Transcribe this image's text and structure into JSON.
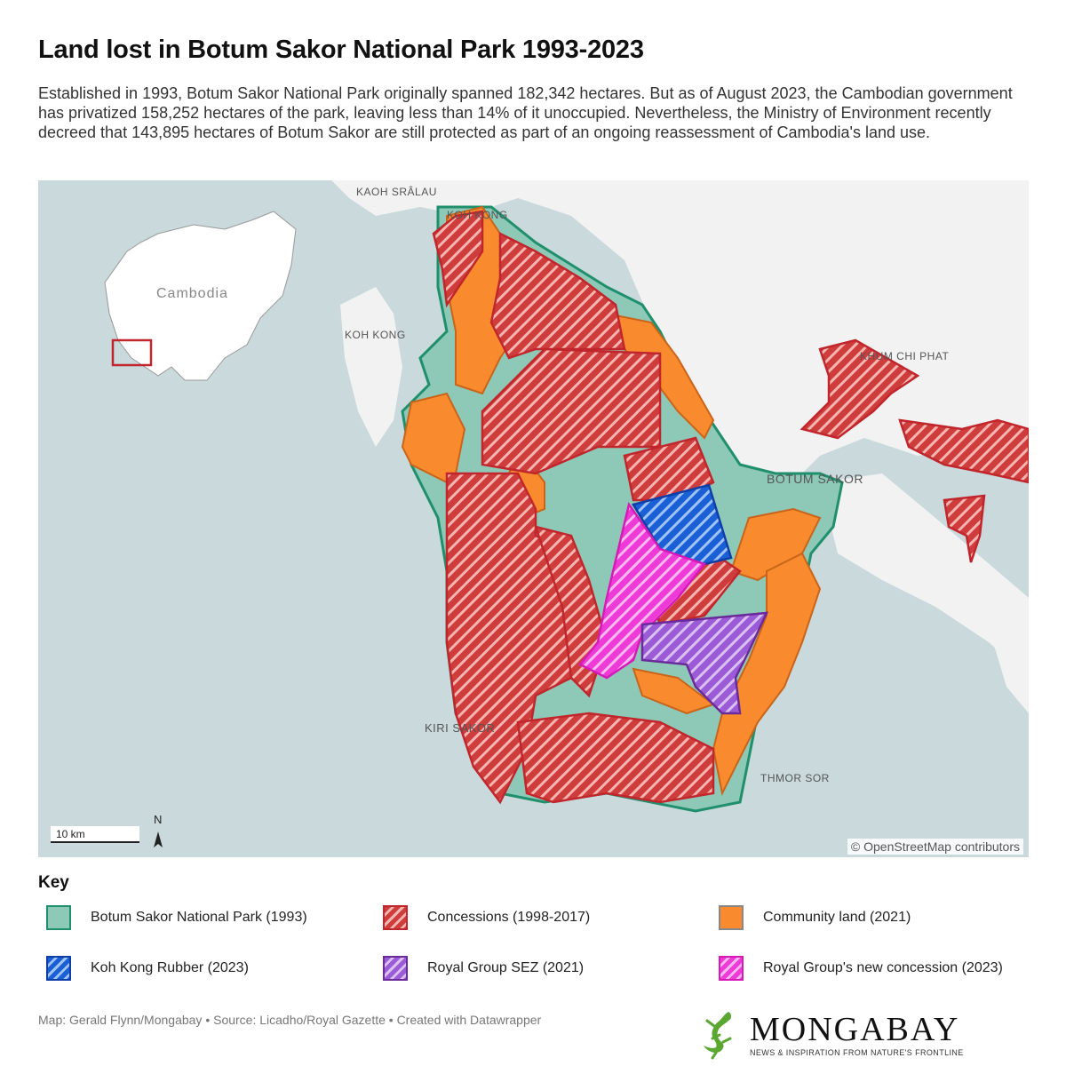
{
  "title": "Land lost in Botum Sakor National Park 1993-2023",
  "description": "Established in 1993, Botum Sakor National Park originally spanned 182,342 hectares. But as of August 2023, the Cambodian government has privatized 158,252 hectares of the park, leaving less than 14% of it unoccupied. Nevertheless, the Ministry of Environment recently decreed that 143,895 hectares of Botum Sakor are still protected as part of an ongoing reassessment of Cambodia's land use.",
  "map": {
    "inset_label": "Cambodia",
    "places": {
      "kaoh_sralau": "KAOH SRÂLAU",
      "koh_kong_town": "KOH KONG",
      "koh_kong_island": "KOH KONG",
      "khum_chi_phat": "KHUM CHI PHAT",
      "botum_sakor": "BOTUM SAKOR",
      "kiri_sakor": "KIRI SAKOR",
      "thmor_sor": "THMOR SOR"
    },
    "scale_label": "10 km",
    "north_label": "N",
    "attribution": "© OpenStreetMap contributors",
    "colors": {
      "water": "#c9d9dc",
      "land": "#f2f2f2",
      "park": "#8ec9b8",
      "park_border": "#1f8f6c",
      "concession": "#cf3c3c",
      "community": "#f98b2e",
      "rubber": "#1a5fd6",
      "sez": "#9b5bd6",
      "new_concession": "#ee3bd8"
    }
  },
  "key": {
    "title": "Key",
    "items": [
      {
        "label": "Botum Sakor National Park (1993)"
      },
      {
        "label": "Concessions (1998-2017)"
      },
      {
        "label": "Community land (2021)"
      },
      {
        "label": "Koh Kong Rubber (2023)"
      },
      {
        "label": "Royal Group SEZ (2021)"
      },
      {
        "label": "Royal Group's new concession (2023)"
      }
    ]
  },
  "footer": "Map: Gerald Flynn/Mongabay • Source: Licadho/Royal Gazette • Created with Datawrapper",
  "logo": {
    "name": "MONGABAY",
    "tagline": "NEWS & INSPIRATION FROM NATURE'S FRONTLINE"
  }
}
